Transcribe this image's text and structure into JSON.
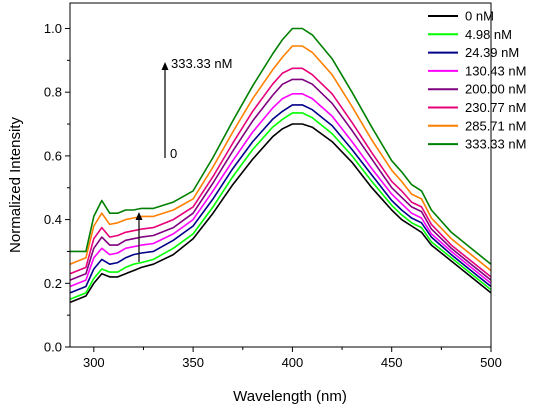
{
  "chart_data": {
    "type": "line",
    "xlabel": "Wavelength (nm)",
    "ylabel": "Normalized Intensity",
    "xlim": [
      288,
      500
    ],
    "ylim": [
      0.0,
      1.08
    ],
    "xticks": [
      300,
      350,
      400,
      450,
      500
    ],
    "yticks": [
      0.0,
      0.2,
      0.4,
      0.6,
      0.8,
      1.0
    ],
    "xtick_labels": [
      "300",
      "350",
      "400",
      "450",
      "500"
    ],
    "ytick_labels": [
      "0.0",
      "0.2",
      "0.4",
      "0.6",
      "0.8",
      "1.0"
    ],
    "grid": false,
    "legend_position": "top-right",
    "annotations": {
      "arrow_top": "333.33 nM",
      "arrow_bottom": "0"
    },
    "series": [
      {
        "name": "0 nM",
        "color": "#000000",
        "x": [
          288,
          296,
          300,
          304,
          308,
          312,
          316,
          320,
          324,
          330,
          340,
          350,
          360,
          370,
          380,
          390,
          395,
          400,
          405,
          410,
          420,
          430,
          440,
          450,
          455,
          460,
          465,
          470,
          480,
          490,
          500
        ],
        "y": [
          0.14,
          0.16,
          0.2,
          0.23,
          0.22,
          0.22,
          0.23,
          0.24,
          0.25,
          0.26,
          0.29,
          0.34,
          0.42,
          0.51,
          0.59,
          0.66,
          0.685,
          0.7,
          0.7,
          0.69,
          0.645,
          0.58,
          0.5,
          0.43,
          0.4,
          0.38,
          0.36,
          0.32,
          0.27,
          0.22,
          0.17
        ]
      },
      {
        "name": "4.98 nM",
        "color": "#00ff00",
        "x": [
          288,
          296,
          300,
          304,
          308,
          312,
          316,
          320,
          324,
          330,
          340,
          350,
          360,
          370,
          380,
          390,
          395,
          400,
          405,
          410,
          420,
          430,
          440,
          450,
          455,
          460,
          465,
          470,
          480,
          490,
          500
        ],
        "y": [
          0.15,
          0.17,
          0.215,
          0.245,
          0.235,
          0.235,
          0.25,
          0.26,
          0.265,
          0.275,
          0.31,
          0.355,
          0.44,
          0.535,
          0.62,
          0.69,
          0.715,
          0.735,
          0.735,
          0.72,
          0.67,
          0.6,
          0.52,
          0.445,
          0.415,
          0.39,
          0.375,
          0.33,
          0.28,
          0.23,
          0.18
        ]
      },
      {
        "name": "24.39 nM",
        "color": "#00008b",
        "x": [
          288,
          296,
          300,
          304,
          308,
          312,
          316,
          320,
          324,
          330,
          340,
          350,
          360,
          370,
          380,
          390,
          395,
          400,
          405,
          410,
          420,
          430,
          440,
          450,
          455,
          460,
          465,
          470,
          480,
          490,
          500
        ],
        "y": [
          0.17,
          0.19,
          0.245,
          0.275,
          0.26,
          0.265,
          0.28,
          0.29,
          0.295,
          0.3,
          0.335,
          0.38,
          0.465,
          0.56,
          0.645,
          0.715,
          0.74,
          0.76,
          0.76,
          0.745,
          0.695,
          0.62,
          0.54,
          0.46,
          0.43,
          0.405,
          0.39,
          0.345,
          0.29,
          0.24,
          0.19
        ]
      },
      {
        "name": "130.43 nM",
        "color": "#ff00ff",
        "x": [
          288,
          296,
          300,
          304,
          308,
          312,
          316,
          320,
          324,
          330,
          340,
          350,
          360,
          370,
          380,
          390,
          395,
          400,
          405,
          410,
          420,
          430,
          440,
          450,
          455,
          460,
          465,
          470,
          480,
          490,
          500
        ],
        "y": [
          0.19,
          0.21,
          0.28,
          0.31,
          0.29,
          0.295,
          0.31,
          0.315,
          0.32,
          0.325,
          0.355,
          0.4,
          0.49,
          0.585,
          0.675,
          0.75,
          0.78,
          0.795,
          0.795,
          0.78,
          0.725,
          0.645,
          0.56,
          0.48,
          0.45,
          0.42,
          0.405,
          0.355,
          0.3,
          0.25,
          0.2
        ]
      },
      {
        "name": "200.00 nM",
        "color": "#800080",
        "x": [
          288,
          296,
          300,
          304,
          308,
          312,
          316,
          320,
          324,
          330,
          340,
          350,
          360,
          370,
          380,
          390,
          395,
          400,
          405,
          410,
          420,
          430,
          440,
          450,
          455,
          460,
          465,
          470,
          480,
          490,
          500
        ],
        "y": [
          0.21,
          0.23,
          0.31,
          0.345,
          0.32,
          0.32,
          0.335,
          0.34,
          0.345,
          0.35,
          0.375,
          0.42,
          0.515,
          0.615,
          0.71,
          0.79,
          0.825,
          0.84,
          0.84,
          0.825,
          0.765,
          0.68,
          0.59,
          0.5,
          0.47,
          0.44,
          0.425,
          0.37,
          0.31,
          0.26,
          0.21
        ]
      },
      {
        "name": "230.77 nM",
        "color": "#e6007a",
        "x": [
          288,
          296,
          300,
          304,
          308,
          312,
          316,
          320,
          324,
          330,
          340,
          350,
          360,
          370,
          380,
          390,
          395,
          400,
          405,
          410,
          420,
          430,
          440,
          450,
          455,
          460,
          465,
          470,
          480,
          490,
          500
        ],
        "y": [
          0.23,
          0.25,
          0.34,
          0.375,
          0.345,
          0.35,
          0.36,
          0.365,
          0.37,
          0.375,
          0.4,
          0.44,
          0.535,
          0.64,
          0.74,
          0.825,
          0.86,
          0.875,
          0.875,
          0.855,
          0.795,
          0.705,
          0.61,
          0.52,
          0.49,
          0.455,
          0.44,
          0.385,
          0.32,
          0.27,
          0.22
        ]
      },
      {
        "name": "285.71 nM",
        "color": "#ff8000",
        "x": [
          288,
          296,
          300,
          304,
          308,
          312,
          316,
          320,
          324,
          330,
          340,
          350,
          360,
          370,
          380,
          390,
          395,
          400,
          405,
          410,
          420,
          430,
          440,
          450,
          455,
          460,
          465,
          470,
          480,
          490,
          500
        ],
        "y": [
          0.26,
          0.28,
          0.38,
          0.42,
          0.385,
          0.39,
          0.4,
          0.405,
          0.41,
          0.41,
          0.43,
          0.465,
          0.565,
          0.675,
          0.78,
          0.87,
          0.91,
          0.945,
          0.945,
          0.925,
          0.855,
          0.755,
          0.65,
          0.555,
          0.52,
          0.48,
          0.465,
          0.405,
          0.34,
          0.29,
          0.24
        ]
      },
      {
        "name": "333.33 nM",
        "color": "#008000",
        "x": [
          288,
          296,
          300,
          304,
          308,
          312,
          316,
          320,
          324,
          330,
          340,
          350,
          360,
          370,
          380,
          390,
          395,
          400,
          405,
          410,
          420,
          430,
          440,
          450,
          455,
          460,
          465,
          470,
          480,
          490,
          500
        ],
        "y": [
          0.3,
          0.3,
          0.41,
          0.46,
          0.42,
          0.42,
          0.43,
          0.43,
          0.435,
          0.435,
          0.455,
          0.49,
          0.595,
          0.71,
          0.82,
          0.92,
          0.965,
          1.0,
          1.0,
          0.98,
          0.905,
          0.8,
          0.69,
          0.585,
          0.55,
          0.51,
          0.49,
          0.43,
          0.36,
          0.31,
          0.26
        ]
      }
    ]
  }
}
